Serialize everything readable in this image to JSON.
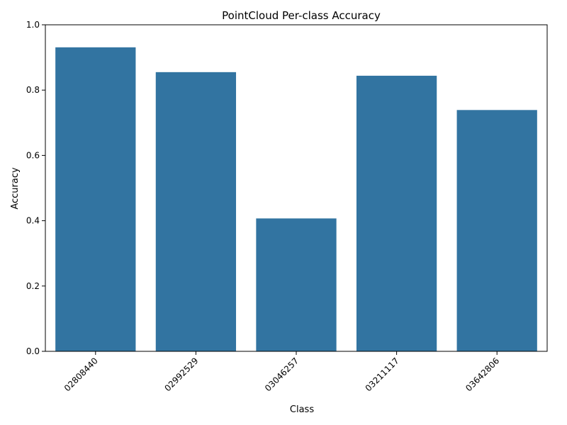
{
  "chart_data": {
    "type": "bar",
    "title": "PointCloud Per-class Accuracy",
    "xlabel": "Class",
    "ylabel": "Accuracy",
    "categories": [
      "02808440",
      "02992529",
      "03046257",
      "03211117",
      "03642806"
    ],
    "values": [
      0.931,
      0.855,
      0.407,
      0.844,
      0.739
    ],
    "ylim": [
      0,
      1.0
    ],
    "yticks": [
      "0.0",
      "0.2",
      "0.4",
      "0.6",
      "0.8",
      "1.0"
    ],
    "grid": false,
    "bar_color": "#3274a1",
    "x_tick_rotation": 45
  }
}
